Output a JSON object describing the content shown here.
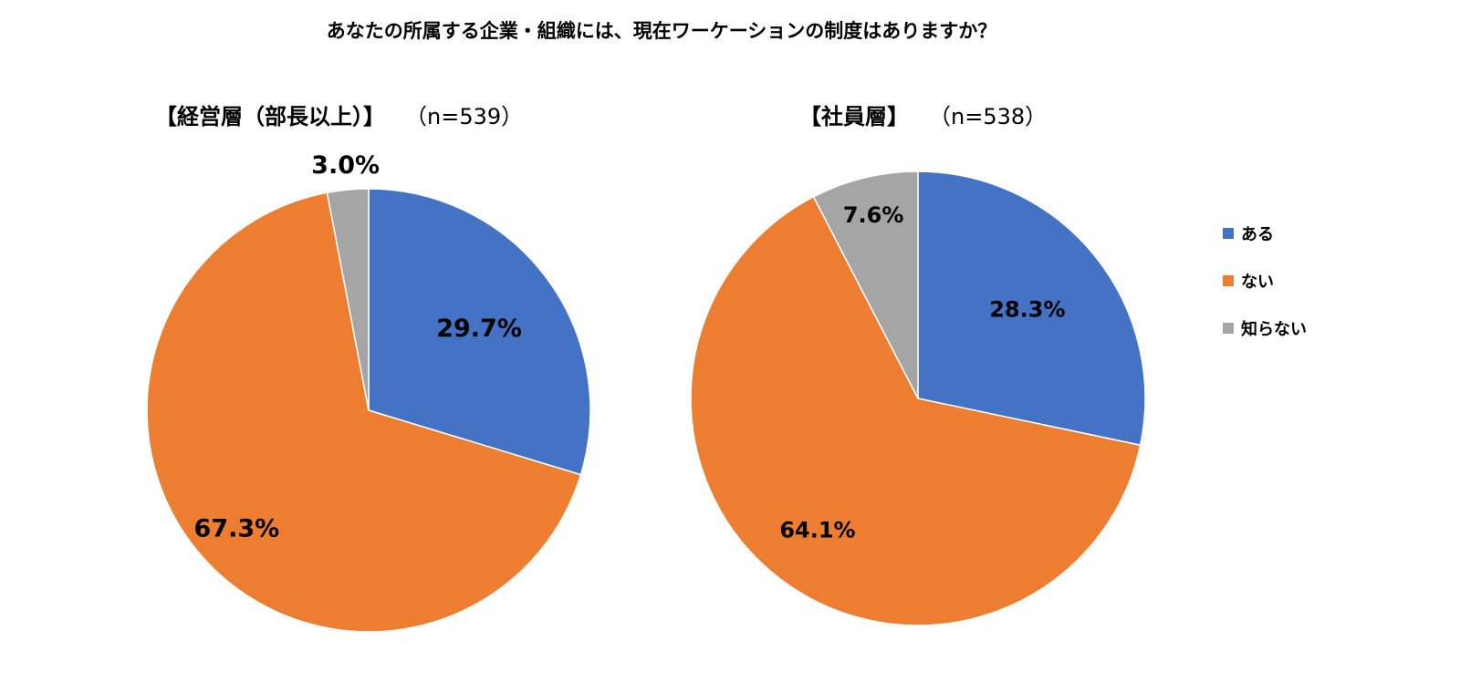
{
  "title": "あなたの所属する企業・組織には、現在ワーケーションの制度はありますか？",
  "legend": {
    "items": [
      {
        "label": "ある",
        "color": "#4472C4"
      },
      {
        "label": "ない",
        "color": "#ED7D31"
      },
      {
        "label": "知らない",
        "color": "#A5A5A5"
      }
    ]
  },
  "chart_data": [
    {
      "type": "pie",
      "title": "【経営層（部長以上）】",
      "n_label": "（n=539）",
      "categories": [
        "ある",
        "ない",
        "知らない"
      ],
      "values": [
        29.7,
        67.3,
        3.0
      ],
      "labels": [
        "29.7%",
        "67.3%",
        "3.0%"
      ],
      "colors": [
        "#4472C4",
        "#ED7D31",
        "#A5A5A5"
      ],
      "legend": "none"
    },
    {
      "type": "pie",
      "title": "【社員層】",
      "n_label": "（n=538）",
      "categories": [
        "ある",
        "ない",
        "知らない"
      ],
      "values": [
        28.3,
        64.1,
        7.6
      ],
      "labels": [
        "28.3%",
        "64.1%",
        "7.6%"
      ],
      "colors": [
        "#4472C4",
        "#ED7D31",
        "#A5A5A5"
      ],
      "legend": "right"
    }
  ]
}
